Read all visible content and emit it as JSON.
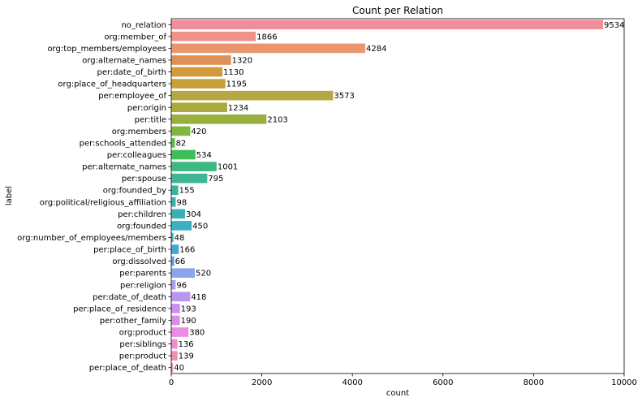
{
  "chart_data": {
    "type": "bar",
    "orientation": "horizontal",
    "title": "Count per Relation",
    "xlabel": "count",
    "ylabel": "label",
    "xlim": [
      0,
      10000
    ],
    "xticks": [
      "0",
      "2000",
      "4000",
      "6000",
      "8000",
      "10000"
    ],
    "grid": false,
    "categories": [
      "no_relation",
      "org:member_of",
      "org:top_members/employees",
      "org:alternate_names",
      "per:date_of_birth",
      "org:place_of_headquarters",
      "per:employee_of",
      "per:origin",
      "per:title",
      "org:members",
      "per:schools_attended",
      "per:colleagues",
      "per:alternate_names",
      "per:spouse",
      "org:founded_by",
      "org:political/religious_affiliation",
      "per:children",
      "org:founded",
      "org:number_of_employees/members",
      "per:place_of_birth",
      "org:dissolved",
      "per:parents",
      "per:religion",
      "per:date_of_death",
      "per:place_of_residence",
      "per:other_family",
      "org:product",
      "per:siblings",
      "per:product",
      "per:place_of_death"
    ],
    "values": [
      9534,
      1866,
      4284,
      1320,
      1130,
      1195,
      3573,
      1234,
      2103,
      420,
      82,
      534,
      1001,
      795,
      155,
      98,
      304,
      450,
      48,
      166,
      66,
      520,
      96,
      418,
      193,
      190,
      380,
      136,
      139,
      40
    ],
    "colors": [
      "#f08f99",
      "#ee938a",
      "#e9966e",
      "#de9157",
      "#d39a3b",
      "#c8a03b",
      "#b5a743",
      "#a9ab3f",
      "#99b03e",
      "#7fb83c",
      "#5fbb48",
      "#3fbd5a",
      "#3eb87e",
      "#3eb593",
      "#3cb39f",
      "#3ab1ab",
      "#3bb0b4",
      "#3db0bf",
      "#3daec9",
      "#45a8d3",
      "#5ca2df",
      "#8ba4ec",
      "#a49ef2",
      "#b995f0",
      "#c991ec",
      "#dc8ce8",
      "#ec8be4",
      "#ef8bd0",
      "#f08cba",
      "#f28fa5"
    ]
  }
}
